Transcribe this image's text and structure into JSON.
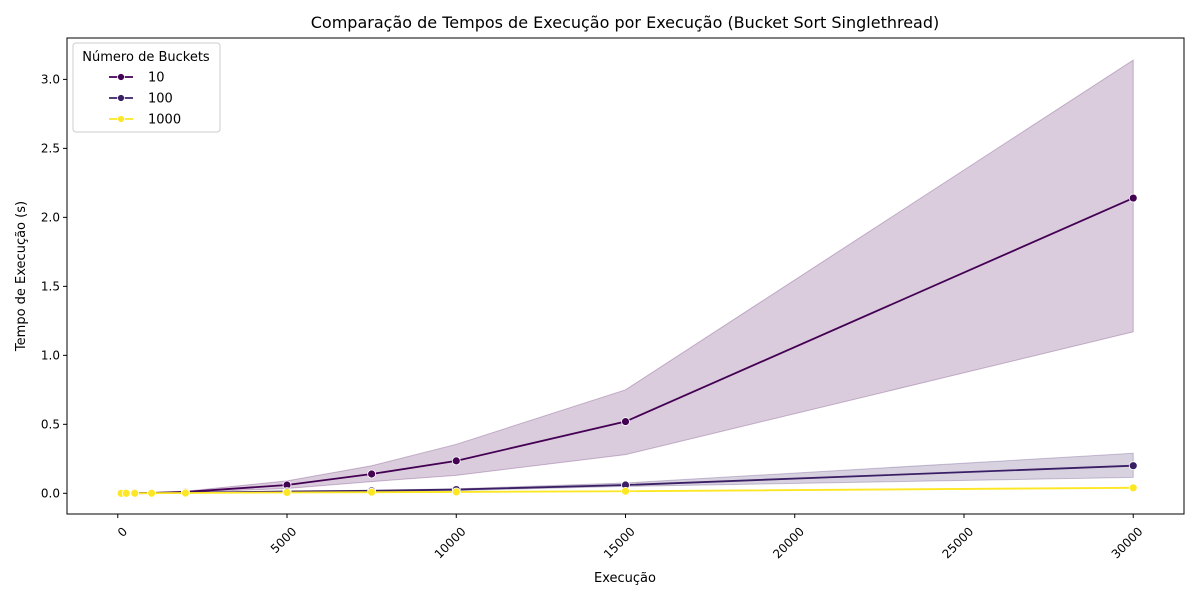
{
  "chart_data": {
    "type": "line",
    "title": "Comparação de Tempos de Execução por Execução (Bucket Sort Singlethread)",
    "xlabel": "Execução",
    "ylabel": "Tempo de Execução (s)",
    "xlim": [
      -1500,
      31500
    ],
    "ylim": [
      -0.15,
      3.3
    ],
    "xticks": [
      0,
      5000,
      10000,
      15000,
      20000,
      25000,
      30000
    ],
    "yticks": [
      0.0,
      0.5,
      1.0,
      1.5,
      2.0,
      2.5,
      3.0
    ],
    "xtick_labels": [
      "0",
      "5000",
      "10000",
      "15000",
      "20000",
      "25000",
      "30000"
    ],
    "ytick_labels": [
      "0.0",
      "0.5",
      "1.0",
      "1.5",
      "2.0",
      "2.5",
      "3.0"
    ],
    "x_tick_rotation": 45,
    "grid": false,
    "legend": {
      "title": "Número de Buckets",
      "placement": "top-left"
    },
    "x": [
      100,
      250,
      500,
      1000,
      2000,
      5000,
      7500,
      10000,
      15000,
      30000
    ],
    "series": [
      {
        "name": "10",
        "color": "#440154",
        "values": [
          0.0003,
          0.0008,
          0.0015,
          0.003,
          0.01,
          0.06,
          0.14,
          0.235,
          0.52,
          2.14
        ],
        "ci_low": [
          0.0,
          0.0,
          0.001,
          0.002,
          0.007,
          0.035,
          0.085,
          0.13,
          0.28,
          1.17
        ],
        "ci_high": [
          0.0005,
          0.0012,
          0.002,
          0.004,
          0.015,
          0.09,
          0.2,
          0.355,
          0.75,
          3.14
        ]
      },
      {
        "name": "100",
        "color": "#3b1f66",
        "values": [
          0.0002,
          0.0004,
          0.0008,
          0.0015,
          0.004,
          0.013,
          0.018,
          0.027,
          0.06,
          0.2
        ],
        "ci_low": [
          0.0,
          0.0002,
          0.0005,
          0.001,
          0.003,
          0.01,
          0.014,
          0.02,
          0.05,
          0.115
        ],
        "ci_high": [
          0.0003,
          0.0006,
          0.001,
          0.002,
          0.005,
          0.016,
          0.022,
          0.033,
          0.075,
          0.29
        ]
      },
      {
        "name": "1000",
        "color": "#fde725",
        "values": [
          0.0001,
          0.0003,
          0.0005,
          0.0009,
          0.002,
          0.006,
          0.008,
          0.01,
          0.015,
          0.04
        ],
        "ci_low": [
          0.0,
          0.0002,
          0.0004,
          0.0007,
          0.0015,
          0.005,
          0.007,
          0.009,
          0.013,
          0.036
        ],
        "ci_high": [
          0.0002,
          0.0004,
          0.0006,
          0.0011,
          0.0025,
          0.007,
          0.009,
          0.011,
          0.017,
          0.044
        ]
      }
    ]
  }
}
